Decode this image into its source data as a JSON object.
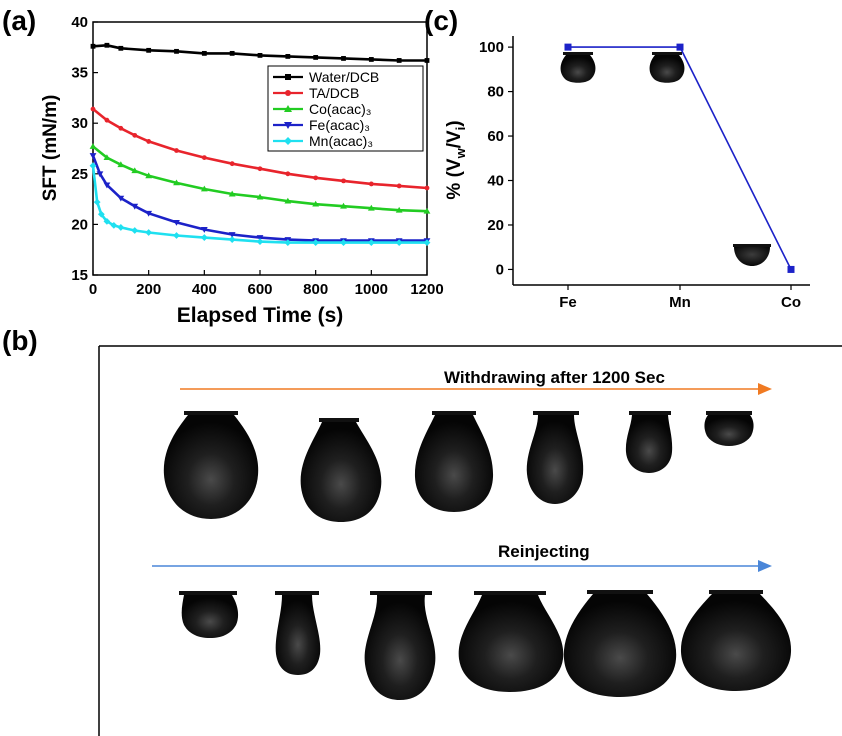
{
  "labels": {
    "a": "(a)",
    "b": "(b)",
    "c": "(c)"
  },
  "chart_data": [
    {
      "id": "a",
      "type": "line",
      "title": "",
      "xlabel": "Elapsed Time (s)",
      "ylabel": "SFT (mN/m)",
      "xlim": [
        0,
        1200
      ],
      "ylim": [
        15,
        40
      ],
      "xticks": [
        0,
        200,
        400,
        600,
        800,
        1000,
        1200
      ],
      "yticks": [
        15,
        20,
        25,
        30,
        35,
        40
      ],
      "legend_position": "top-right",
      "series": [
        {
          "name": "Water/DCB",
          "color": "#000000",
          "marker": "square",
          "x": [
            0,
            50,
            100,
            200,
            300,
            400,
            500,
            600,
            700,
            800,
            900,
            1000,
            1100,
            1200
          ],
          "y": [
            37.6,
            37.7,
            37.4,
            37.2,
            37.1,
            36.9,
            36.9,
            36.7,
            36.6,
            36.5,
            36.4,
            36.3,
            36.2,
            36.2
          ]
        },
        {
          "name": "TA/DCB",
          "color": "#e8242c",
          "marker": "circle",
          "x": [
            0,
            50,
            100,
            150,
            200,
            300,
            400,
            500,
            600,
            700,
            800,
            900,
            1000,
            1100,
            1200
          ],
          "y": [
            31.4,
            30.3,
            29.5,
            28.8,
            28.2,
            27.3,
            26.6,
            26.0,
            25.5,
            25.0,
            24.6,
            24.3,
            24.0,
            23.8,
            23.6
          ]
        },
        {
          "name": "Co(acac)₃",
          "color": "#22cc22",
          "marker": "triangle-up",
          "x": [
            0,
            50,
            100,
            150,
            200,
            300,
            400,
            500,
            600,
            700,
            800,
            900,
            1000,
            1100,
            1200
          ],
          "y": [
            27.7,
            26.6,
            25.9,
            25.3,
            24.8,
            24.1,
            23.5,
            23.0,
            22.7,
            22.3,
            22.0,
            21.8,
            21.6,
            21.4,
            21.3
          ]
        },
        {
          "name": "Fe(acac)₃",
          "color": "#1c22c8",
          "marker": "triangle-down",
          "x": [
            0,
            25,
            50,
            100,
            150,
            200,
            300,
            400,
            500,
            600,
            700,
            800,
            900,
            1000,
            1100,
            1200
          ],
          "y": [
            26.8,
            25.0,
            23.9,
            22.6,
            21.8,
            21.1,
            20.2,
            19.5,
            19.0,
            18.7,
            18.5,
            18.4,
            18.4,
            18.4,
            18.4,
            18.4
          ]
        },
        {
          "name": "Mn(acac)₃",
          "color": "#1fe0f0",
          "marker": "diamond",
          "x": [
            0,
            15,
            30,
            50,
            75,
            100,
            150,
            200,
            300,
            400,
            500,
            600,
            700,
            800,
            900,
            1000,
            1100,
            1200
          ],
          "y": [
            25.8,
            22.2,
            21.0,
            20.3,
            19.9,
            19.7,
            19.4,
            19.2,
            18.9,
            18.7,
            18.5,
            18.3,
            18.2,
            18.2,
            18.2,
            18.2,
            18.2,
            18.2
          ]
        }
      ]
    },
    {
      "id": "c",
      "type": "line",
      "title": "",
      "xlabel": "",
      "ylabel": "% (V_w/V_i)",
      "ylabel_parts": {
        "prefix": "% (V",
        "sub1": "w",
        "mid": "/V",
        "sub2": "i",
        "suffix": ")"
      },
      "categories": [
        "Fe",
        "Mn",
        "Co"
      ],
      "values": [
        100,
        100,
        0
      ],
      "ylim": [
        -7,
        105
      ],
      "yticks": [
        0,
        20,
        40,
        60,
        80,
        100
      ],
      "color": "#1c22c8"
    }
  ],
  "panel_b": {
    "withdraw_label": "Withdrawing after 1200 Sec",
    "reinject_label": "Reinjecting",
    "withdraw_arrow_color": "#f07a22",
    "reinject_arrow_color": "#4a86d8",
    "withdraw_droplet_fill_fractions": [
      1.0,
      0.86,
      0.72,
      0.58,
      0.36,
      0.2
    ],
    "reinject_droplet_fill_fractions": [
      0.28,
      0.45,
      0.72,
      0.8,
      0.98,
      1.0
    ]
  }
}
